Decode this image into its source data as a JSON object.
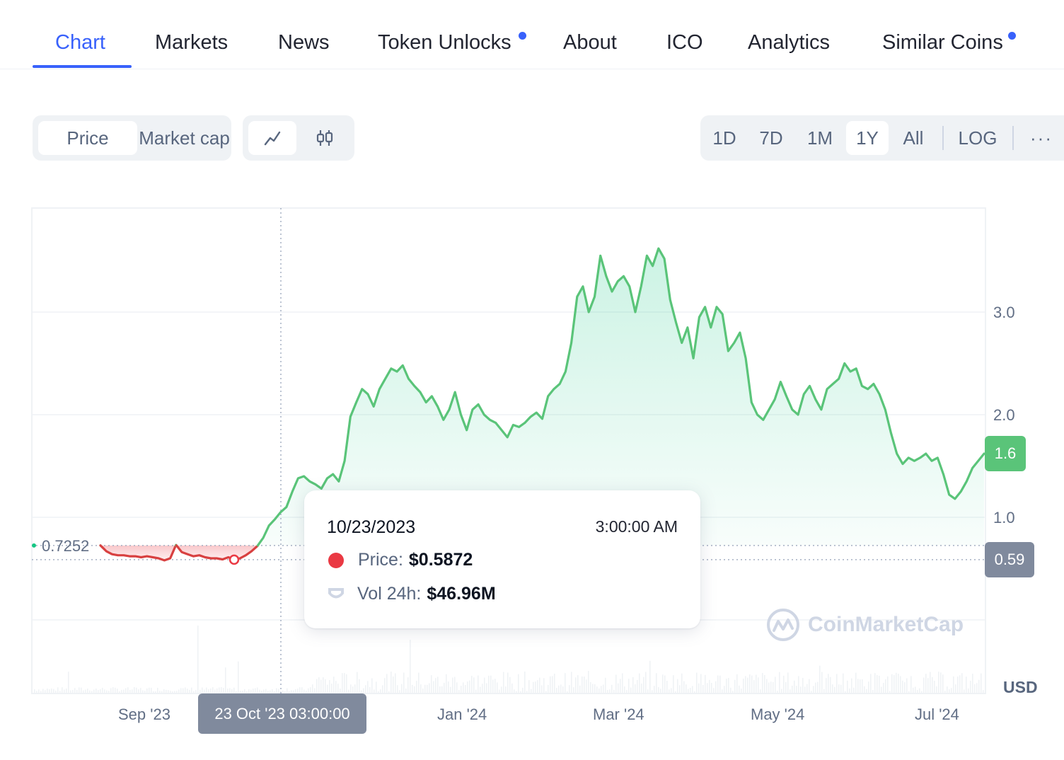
{
  "tabs": [
    {
      "label": "Chart",
      "active": true,
      "dot": false
    },
    {
      "label": "Markets",
      "active": false,
      "dot": false
    },
    {
      "label": "News",
      "active": false,
      "dot": false
    },
    {
      "label": "Token Unlocks",
      "active": false,
      "dot": true
    },
    {
      "label": "About",
      "active": false,
      "dot": false
    },
    {
      "label": "ICO",
      "active": false,
      "dot": false
    },
    {
      "label": "Analytics",
      "active": false,
      "dot": false
    },
    {
      "label": "Similar Coins",
      "active": false,
      "dot": true
    }
  ],
  "metric_toggle": {
    "price": "Price",
    "market_cap": "Market cap",
    "selected": "Price"
  },
  "chart_style": {
    "selected": "line",
    "icons": [
      "line-chart-icon",
      "candlestick-icon"
    ]
  },
  "ranges": {
    "items": [
      "1D",
      "7D",
      "1M",
      "1Y",
      "All"
    ],
    "selected": "1Y",
    "log": "LOG",
    "more": "···"
  },
  "colors": {
    "up": "#16c784",
    "down": "#ea3943",
    "accent": "#3861fb",
    "badge_up": "#5ac479",
    "badge_neutral": "#808a9d"
  },
  "chart_data": {
    "type": "area",
    "title": "",
    "xlabel": "",
    "ylabel": "",
    "currency_label": "USD",
    "y_ticks": [
      "3.0",
      "2.0",
      "1.0"
    ],
    "x_ticks": [
      "Sep '23",
      "Jan '24",
      "Mar '24",
      "May '24",
      "Jul '24"
    ],
    "ylim": [
      0,
      4
    ],
    "baseline_label": "0.7252",
    "baseline_value": 0.7252,
    "current_price_label": "1.6",
    "hover_price_label": "0.59",
    "crosshair_label": "23 Oct '23 03:00:00",
    "series": [
      {
        "values": [
          0.7252,
          0.67,
          0.64,
          0.63,
          0.63,
          0.62,
          0.62,
          0.61,
          0.62,
          0.61,
          0.6,
          0.58,
          0.6,
          0.73,
          0.66,
          0.64,
          0.62,
          0.63,
          0.61,
          0.6,
          0.6,
          0.59,
          0.61,
          0.5872,
          0.6,
          0.63,
          0.67,
          0.72,
          0.8,
          0.92,
          0.98,
          1.05,
          1.1,
          1.25,
          1.38,
          1.4,
          1.35,
          1.32,
          1.28,
          1.38,
          1.42,
          1.35,
          1.55,
          1.98,
          2.12,
          2.25,
          2.2,
          2.08,
          2.25,
          2.35,
          2.45,
          2.42,
          2.48,
          2.35,
          2.28,
          2.22,
          2.12,
          2.18,
          2.08,
          1.95,
          2.05,
          2.22,
          2.0,
          1.85,
          2.05,
          2.1,
          2.0,
          1.95,
          1.92,
          1.85,
          1.78,
          1.9,
          1.88,
          1.92,
          1.98,
          2.02,
          1.96,
          2.18,
          2.25,
          2.3,
          2.42,
          2.7,
          3.15,
          3.25,
          3.0,
          3.15,
          3.55,
          3.35,
          3.2,
          3.3,
          3.35,
          3.25,
          3.0,
          3.25,
          3.55,
          3.45,
          3.62,
          3.52,
          3.12,
          2.9,
          2.7,
          2.85,
          2.55,
          2.95,
          3.05,
          2.85,
          3.05,
          2.98,
          2.62,
          2.7,
          2.8,
          2.55,
          2.12,
          2.0,
          1.95,
          2.05,
          2.15,
          2.32,
          2.18,
          2.05,
          2.0,
          2.2,
          2.28,
          2.15,
          2.05,
          2.25,
          2.3,
          2.35,
          2.5,
          2.42,
          2.45,
          2.28,
          2.25,
          2.3,
          2.2,
          2.05,
          1.82,
          1.62,
          1.52,
          1.58,
          1.55,
          1.58,
          1.62,
          1.55,
          1.58,
          1.42,
          1.22,
          1.18,
          1.25,
          1.35,
          1.48,
          1.55,
          1.62
        ]
      }
    ]
  },
  "tooltip": {
    "date": "10/23/2023",
    "time": "3:00:00 AM",
    "price_label": "Price:",
    "price_value": "$0.5872",
    "vol_label": "Vol 24h:",
    "vol_value": "$46.96M"
  },
  "watermark": {
    "text": "CoinMarketCap"
  }
}
